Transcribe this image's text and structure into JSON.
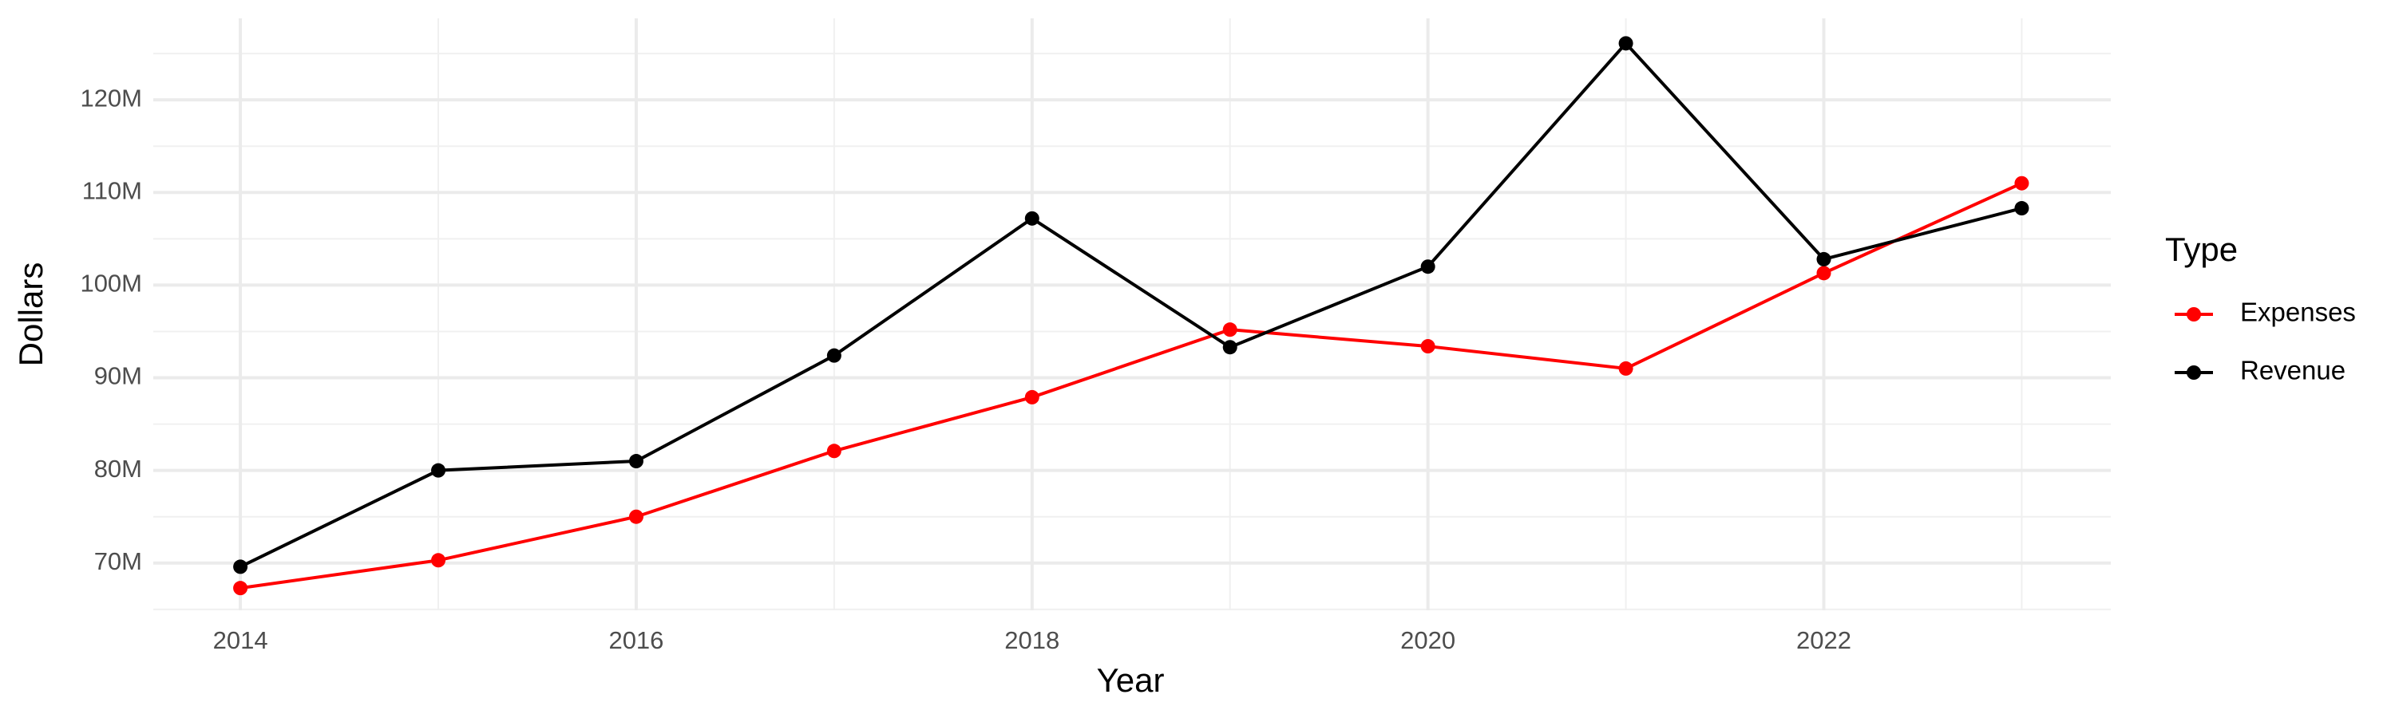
{
  "chart_data": {
    "type": "line",
    "x_label": "Year",
    "y_label": "Dollars",
    "legend_title": "Type",
    "legend_position": "right",
    "x": [
      2014,
      2015,
      2016,
      2017,
      2018,
      2019,
      2020,
      2021,
      2022,
      2023
    ],
    "series": [
      {
        "name": "Expenses",
        "color": "#ff0000",
        "values": [
          67300000,
          70300000,
          75000000,
          82100000,
          87900000,
          95200000,
          93400000,
          91000000,
          101300000,
          111000000
        ]
      },
      {
        "name": "Revenue",
        "color": "#000000",
        "values": [
          69600000,
          80000000,
          81000000,
          92400000,
          107200000,
          93300000,
          102000000,
          126100000,
          102800000,
          108300000
        ]
      }
    ],
    "xlim": [
      2013.56,
      2023.45
    ],
    "xticks": [
      2014,
      2016,
      2018,
      2020,
      2022
    ],
    "ylim": [
      64900000,
      128800000
    ],
    "yticks": [
      {
        "value": 70000000,
        "label": "70M"
      },
      {
        "value": 80000000,
        "label": "80M"
      },
      {
        "value": 90000000,
        "label": "90M"
      },
      {
        "value": 100000000,
        "label": "100M"
      },
      {
        "value": 110000000,
        "label": "110M"
      },
      {
        "value": 120000000,
        "label": "120M"
      }
    ],
    "grid": true
  }
}
